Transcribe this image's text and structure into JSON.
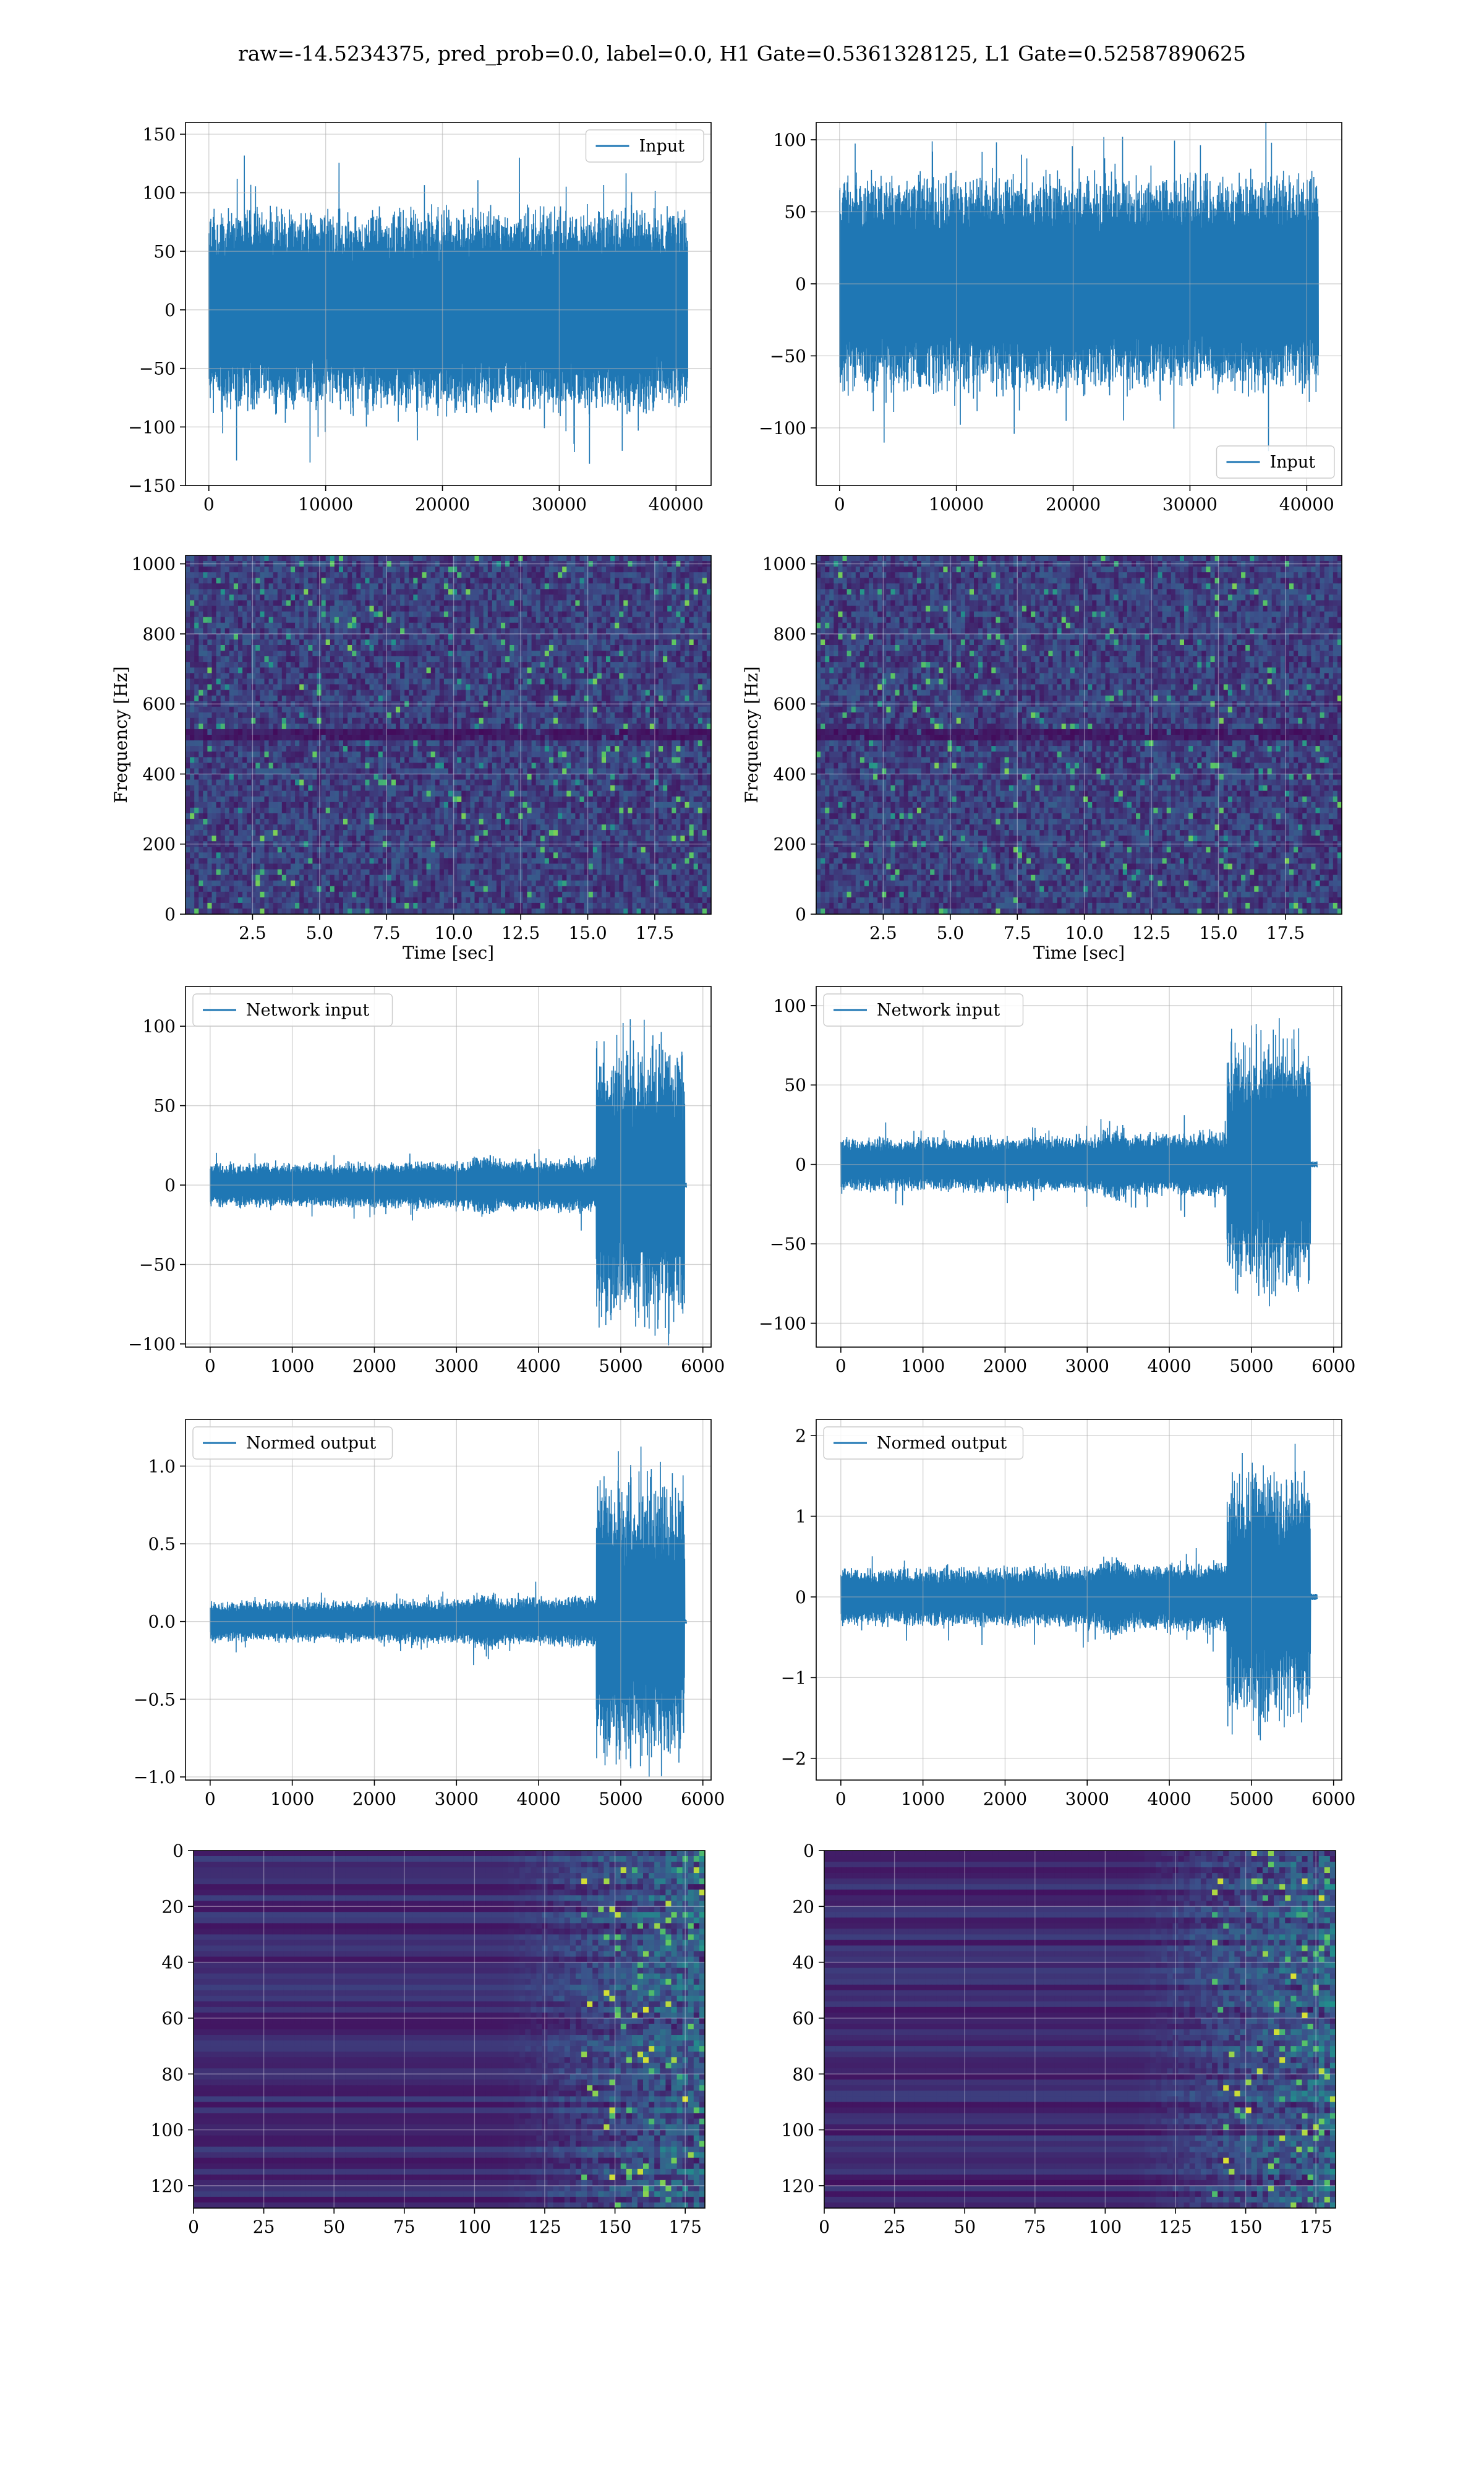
{
  "suptitle": "raw=-14.5234375, pred_prob=0.0, label=0.0, H1 Gate=0.5361328125, L1 Gate=0.52587890625",
  "colors": {
    "line": "#1f77b4",
    "grid": "#b0b0b0",
    "viridis_dark": "#440154",
    "viridis_mid": "#21918c",
    "viridis_bright": "#fde725"
  },
  "chart_data": [
    {
      "id": "h1-input",
      "type": "line",
      "series": [
        {
          "name": "Input",
          "envelope": "stationary-noise",
          "amplitude_core": 80,
          "amplitude_peak": 143
        }
      ],
      "xlim": [
        -2000,
        43000
      ],
      "ylim": [
        -150,
        160
      ],
      "xticks": [
        0,
        10000,
        20000,
        30000,
        40000
      ],
      "yticks": [
        -150,
        -100,
        -50,
        0,
        50,
        100,
        150
      ],
      "xrange": [
        0,
        41000
      ],
      "legend": "upper-right",
      "grid": true
    },
    {
      "id": "l1-input",
      "type": "line",
      "series": [
        {
          "name": "Input",
          "envelope": "stationary-noise",
          "amplitude_core": 70,
          "amplitude_peak": 120
        }
      ],
      "xlim": [
        -2000,
        43000
      ],
      "ylim": [
        -140,
        112
      ],
      "xticks": [
        0,
        10000,
        20000,
        30000,
        40000
      ],
      "yticks": [
        -100,
        -50,
        0,
        50,
        100
      ],
      "xrange": [
        0,
        41000
      ],
      "legend": "lower-right",
      "grid": true
    },
    {
      "id": "h1-spectrogram",
      "type": "heatmap",
      "variant": "spectrogram",
      "xlim": [
        0,
        19.6
      ],
      "ylim": [
        0,
        1024
      ],
      "xticks": [
        2.5,
        5.0,
        7.5,
        10.0,
        12.5,
        15.0,
        17.5
      ],
      "yticks": [
        0,
        200,
        400,
        600,
        800,
        1000
      ],
      "xlabel": "Time [sec]",
      "ylabel": "Frequency [Hz]",
      "grid": true
    },
    {
      "id": "l1-spectrogram",
      "type": "heatmap",
      "variant": "spectrogram",
      "xlim": [
        0,
        19.6
      ],
      "ylim": [
        0,
        1024
      ],
      "xticks": [
        2.5,
        5.0,
        7.5,
        10.0,
        12.5,
        15.0,
        17.5
      ],
      "yticks": [
        0,
        200,
        400,
        600,
        800,
        1000
      ],
      "xlabel": "Time [sec]",
      "ylabel": "Frequency [Hz]",
      "grid": true
    },
    {
      "id": "h1-network-input",
      "type": "line",
      "series": [
        {
          "name": "Network input",
          "envelope": "chirp",
          "end_x": 5780,
          "amplitude_base": 15,
          "amplitude_peak": 116
        }
      ],
      "xlim": [
        -300,
        6100
      ],
      "ylim": [
        -102,
        125
      ],
      "xticks": [
        0,
        1000,
        2000,
        3000,
        4000,
        5000,
        6000
      ],
      "yticks": [
        -100,
        -50,
        0,
        50,
        100
      ],
      "xrange": [
        0,
        5800
      ],
      "legend": "upper-left",
      "grid": true
    },
    {
      "id": "l1-network-input",
      "type": "line",
      "series": [
        {
          "name": "Network input",
          "envelope": "chirp",
          "end_x": 5720,
          "amplitude_base": 18,
          "amplitude_peak": 104
        }
      ],
      "xlim": [
        -300,
        6100
      ],
      "ylim": [
        -115,
        112
      ],
      "xticks": [
        0,
        1000,
        2000,
        3000,
        4000,
        5000,
        6000
      ],
      "yticks": [
        -100,
        -50,
        0,
        50,
        100
      ],
      "xrange": [
        0,
        5800
      ],
      "legend": "upper-left",
      "grid": true
    },
    {
      "id": "h1-normed-output",
      "type": "line",
      "series": [
        {
          "name": "Normed output",
          "envelope": "chirp",
          "end_x": 5780,
          "amplitude_base": 0.14,
          "amplitude_peak": 1.2
        }
      ],
      "xlim": [
        -300,
        6100
      ],
      "ylim": [
        -1.02,
        1.3
      ],
      "xticks": [
        0,
        1000,
        2000,
        3000,
        4000,
        5000,
        6000
      ],
      "yticks": [
        -1.0,
        -0.5,
        0.0,
        0.5,
        1.0
      ],
      "xrange": [
        0,
        5800
      ],
      "legend": "upper-left",
      "grid": true
    },
    {
      "id": "l1-normed-output",
      "type": "line",
      "series": [
        {
          "name": "Normed output",
          "envelope": "chirp",
          "end_x": 5720,
          "amplitude_base": 0.38,
          "amplitude_peak": 2.03
        }
      ],
      "xlim": [
        -300,
        6100
      ],
      "ylim": [
        -2.27,
        2.2
      ],
      "xticks": [
        0,
        1000,
        2000,
        3000,
        4000,
        5000,
        6000
      ],
      "yticks": [
        -2,
        -1,
        0,
        1,
        2
      ],
      "xrange": [
        0,
        5800
      ],
      "legend": "upper-left",
      "grid": true
    },
    {
      "id": "h1-feature-map",
      "type": "heatmap",
      "variant": "feature-map",
      "xlim": [
        0,
        182
      ],
      "ylim": [
        128,
        0
      ],
      "xticks": [
        0,
        25,
        50,
        75,
        100,
        125,
        150,
        175
      ],
      "yticks": [
        0,
        20,
        40,
        60,
        80,
        100,
        120
      ],
      "grid": true
    },
    {
      "id": "l1-feature-map",
      "type": "heatmap",
      "variant": "feature-map",
      "xlim": [
        0,
        182
      ],
      "ylim": [
        128,
        0
      ],
      "xticks": [
        0,
        25,
        50,
        75,
        100,
        125,
        150,
        175
      ],
      "yticks": [
        0,
        20,
        40,
        60,
        80,
        100,
        120
      ],
      "grid": true
    }
  ]
}
